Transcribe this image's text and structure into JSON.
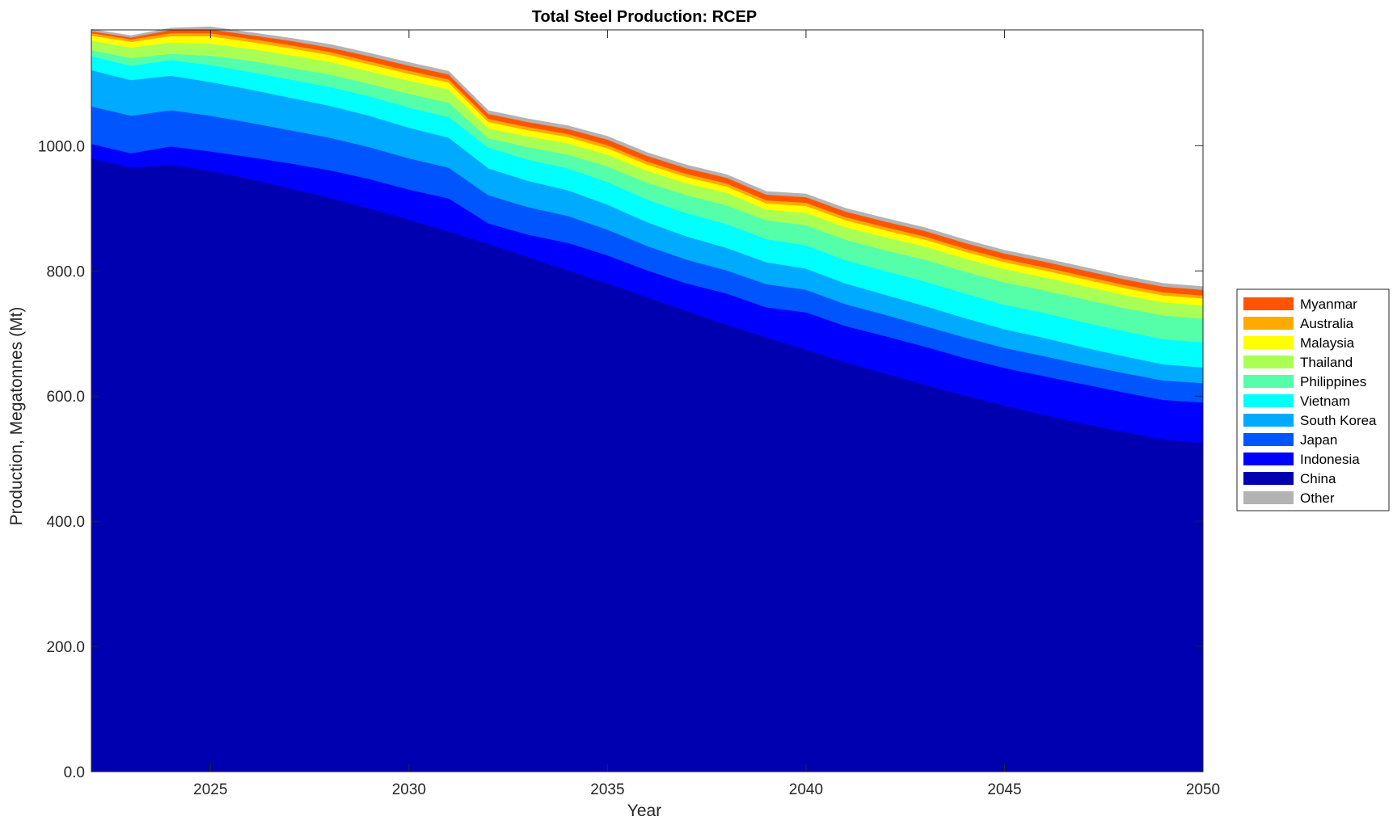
{
  "chart_data": {
    "type": "area",
    "title": "Total Steel Production: RCEP",
    "xlabel": "Year",
    "ylabel": "Production, Megatonnes (Mt)",
    "xlim": [
      2022,
      2050
    ],
    "ylim": [
      0,
      1185
    ],
    "xticks": [
      2025,
      2030,
      2035,
      2040,
      2045,
      2050
    ],
    "yticks": [
      0,
      200,
      400,
      600,
      800,
      1000
    ],
    "ytick_labels": [
      "0.0",
      "200.0",
      "400.0",
      "600.0",
      "800.0",
      "1000.0"
    ],
    "grid": false,
    "legend_position": "right",
    "x": [
      2022,
      2023,
      2024,
      2025,
      2026,
      2027,
      2028,
      2029,
      2030,
      2031,
      2032,
      2033,
      2034,
      2035,
      2036,
      2037,
      2038,
      2039,
      2040,
      2041,
      2042,
      2043,
      2044,
      2045,
      2046,
      2047,
      2048,
      2049,
      2050
    ],
    "series": [
      {
        "name": "China",
        "color": "#0000b0",
        "values": [
          980,
          965,
          970,
          960,
          947,
          932,
          917,
          900,
          882,
          863,
          843,
          822,
          801,
          780,
          758,
          736,
          714,
          694,
          674,
          654,
          636,
          618,
          601,
          585,
          570,
          556,
          543,
          531,
          525
        ]
      },
      {
        "name": "Indonesia",
        "color": "#0000ff",
        "values": [
          23,
          23,
          29,
          31,
          35,
          40,
          44,
          47,
          48,
          53,
          33,
          36,
          44,
          45,
          43,
          44,
          50,
          48,
          60,
          58,
          60,
          61,
          60,
          60,
          62,
          63,
          63,
          63,
          65
        ]
      },
      {
        "name": "Japan",
        "color": "#0055ff",
        "values": [
          60,
          60,
          58,
          57,
          55,
          53,
          52,
          51,
          50,
          49,
          45,
          44,
          43,
          41,
          39,
          38,
          37,
          37,
          36,
          35,
          34,
          33,
          33,
          32,
          32,
          31,
          31,
          31,
          31
        ]
      },
      {
        "name": "South Korea",
        "color": "#00aaff",
        "values": [
          58,
          57,
          55,
          54,
          53,
          52,
          51,
          50,
          49,
          48,
          43,
          42,
          41,
          40,
          38,
          37,
          36,
          35,
          34,
          33,
          32,
          32,
          31,
          30,
          29,
          28,
          27,
          26,
          25
        ]
      },
      {
        "name": "Vietnam",
        "color": "#00ffff",
        "values": [
          22,
          23,
          25,
          27,
          28,
          29,
          30,
          31,
          32,
          33,
          33,
          34,
          35,
          36,
          36,
          37,
          38,
          37,
          37,
          37,
          38,
          39,
          39,
          39,
          40,
          40,
          40,
          40,
          40
        ]
      },
      {
        "name": "Philippines",
        "color": "#55ff aa",
        "values": [
          10,
          12,
          10,
          15,
          18,
          19,
          20,
          20,
          22,
          23,
          15,
          20,
          22,
          25,
          27,
          29,
          30,
          30,
          32,
          33,
          33,
          35,
          35,
          36,
          36,
          37,
          37,
          38,
          38
        ]
      },
      {
        "name": "Thailand",
        "color": "#aaff55",
        "values": [
          15,
          17,
          18,
          19,
          19,
          20,
          20,
          20,
          21,
          21,
          16,
          17,
          18,
          19,
          19,
          19,
          20,
          17,
          20,
          20,
          21,
          21,
          21,
          21,
          21,
          21,
          21,
          21,
          21
        ]
      },
      {
        "name": "Malaysia",
        "color": "#ffff00",
        "values": [
          8,
          9,
          10,
          12,
          11,
          11,
          11,
          11,
          11,
          11,
          10,
          10,
          10,
          10,
          10,
          10,
          10,
          10,
          11,
          11,
          11,
          11,
          11,
          11,
          11,
          11,
          11,
          11,
          11
        ]
      },
      {
        "name": "Australia",
        "color": "#ffaa00",
        "values": [
          4,
          4,
          5,
          5,
          5,
          5,
          5,
          5,
          5,
          5,
          5,
          5,
          5,
          5,
          5,
          5,
          5,
          5,
          5,
          5,
          5,
          5,
          5,
          5,
          5,
          5,
          5,
          5,
          5
        ]
      },
      {
        "name": "Myanmar",
        "color": "#ff5500",
        "values": [
          3,
          3,
          5,
          6,
          6,
          7,
          7,
          8,
          8,
          8,
          8,
          8,
          8,
          9,
          9,
          9,
          9,
          9,
          9,
          9,
          9,
          9,
          9,
          9,
          9,
          9,
          9,
          9,
          9
        ]
      },
      {
        "name": "Other",
        "color": "#b3b3b3",
        "values": [
          3,
          3,
          3,
          4,
          4,
          4,
          5,
          5,
          5,
          5,
          5,
          5,
          5,
          5,
          5,
          5,
          5,
          5,
          5,
          5,
          5,
          5,
          5,
          5,
          5,
          5,
          5,
          5,
          5
        ]
      }
    ],
    "legend_order": [
      "Myanmar",
      "Australia",
      "Malaysia",
      "Thailand",
      "Philippines",
      "Vietnam",
      "South Korea",
      "Japan",
      "Indonesia",
      "China",
      "Other"
    ]
  }
}
